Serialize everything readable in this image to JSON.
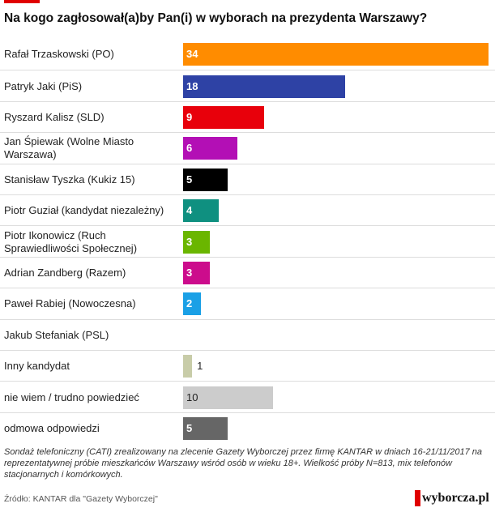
{
  "title": "Na kogo zagłosował(a)by Pan(i) w wyborach na prezydenta Warszawy?",
  "chart_data": {
    "type": "bar",
    "orientation": "horizontal",
    "categories": [
      "Rafał Trzaskowski (PO)",
      "Patryk Jaki (PiS)",
      "Ryszard Kalisz (SLD)",
      "Jan Śpiewak (Wolne Miasto Warszawa)",
      "Stanisław Tyszka (Kukiz 15)",
      "Piotr Guział (kandydat niezależny)",
      "Piotr Ikonowicz (Ruch Sprawiedliwości Społecznej)",
      "Adrian Zandberg (Razem)",
      "Paweł Rabiej (Nowoczesna)",
      "Jakub Stefaniak (PSL)",
      "Inny kandydat",
      "nie wiem / trudno powiedzieć",
      "odmowa odpowiedzi"
    ],
    "values": [
      34,
      18,
      9,
      6,
      5,
      4,
      3,
      3,
      2,
      null,
      1,
      10,
      5
    ],
    "colors": [
      "#ff8c00",
      "#2e42a5",
      "#e8000b",
      "#b30fb5",
      "#000000",
      "#0f9080",
      "#6ab600",
      "#cc0c8c",
      "#1aa0e6",
      "#cccccc",
      "#c8cca8",
      "#cccccc",
      "#666666"
    ],
    "xlim": [
      0,
      34
    ],
    "grid": false,
    "legend": "none"
  },
  "note": "Sondaż telefoniczny (CATI) zrealizowany na zlecenie Gazety Wyborczej przez firmę KANTAR w dniach 16-21/11/2017 na reprezentatywnej próbie mieszkańców Warszawy wśród osób w wieku 18+. Wielkość próby N=813, mix telefonów stacjonarnych i komórkowych.",
  "source": "Źródło: KANTAR dla \"Gazety Wyborczej\"",
  "logo_text": "wyborcza.pl"
}
